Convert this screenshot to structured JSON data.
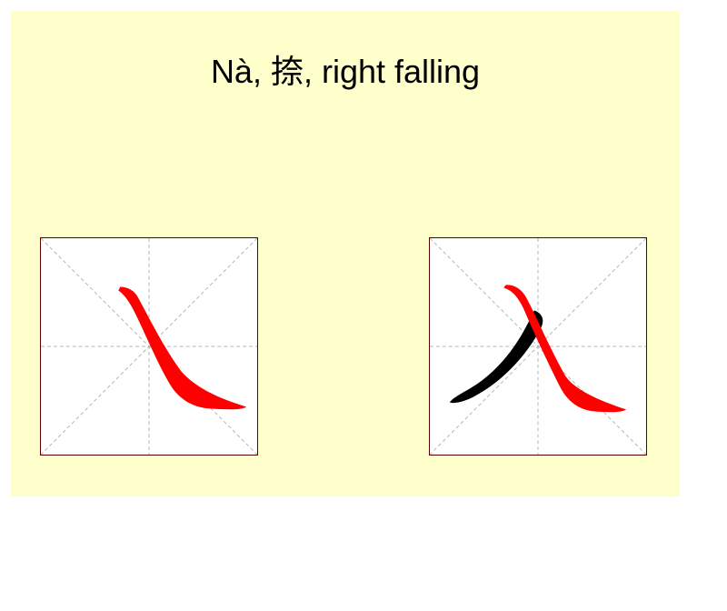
{
  "title": "Nà, 捺, right falling",
  "colors": {
    "background": "#ffffcc",
    "grid_border": "#5a0000",
    "guide_lines": "#b0b0b0",
    "highlight_stroke": "#ff0000",
    "context_stroke": "#000000"
  },
  "panels": [
    {
      "name": "stroke-alone",
      "strokes": [
        "right-falling"
      ]
    },
    {
      "name": "stroke-in-character",
      "strokes": [
        "left-falling",
        "right-falling"
      ]
    }
  ]
}
